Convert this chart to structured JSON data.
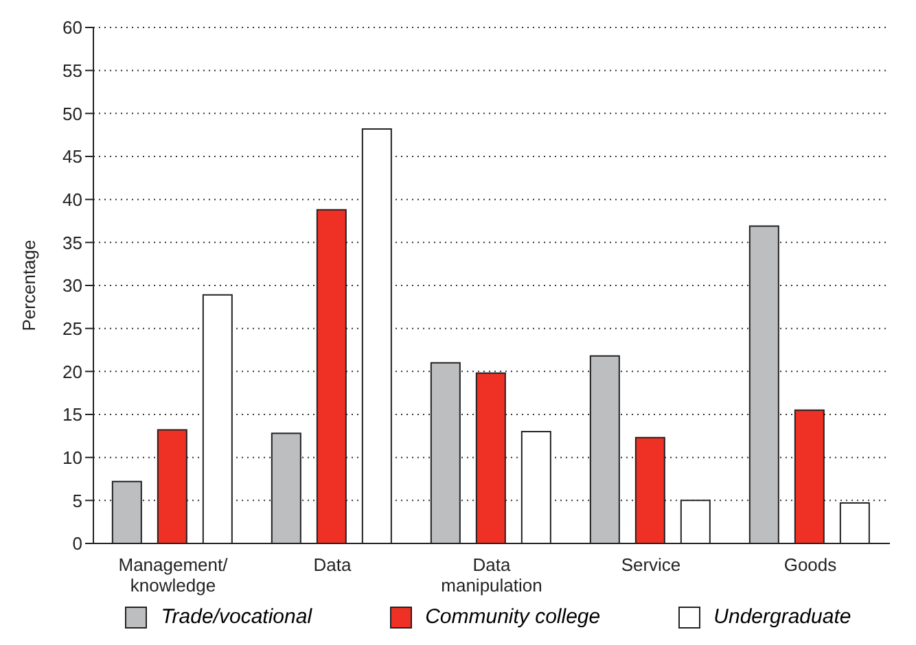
{
  "chart_data": {
    "type": "bar",
    "ylabel": "Percentage",
    "categories": [
      "Management/knowledge",
      "Data",
      "Data manipulation",
      "Service",
      "Goods"
    ],
    "series": [
      {
        "name": "Trade/vocational",
        "color": "#bcbec0",
        "values": [
          7.2,
          12.8,
          21,
          21.8,
          36.9
        ]
      },
      {
        "name": "Community college",
        "color": "#ee3124",
        "values": [
          13.2,
          38.8,
          19.8,
          12.3,
          15.5
        ]
      },
      {
        "name": "Undergraduate",
        "color": "#ffffff",
        "values": [
          28.9,
          48.2,
          13,
          5,
          4.7
        ]
      }
    ],
    "ylim": [
      0,
      60
    ],
    "yticks": [
      0,
      5,
      10,
      15,
      20,
      25,
      30,
      35,
      40,
      45,
      50,
      55,
      60
    ],
    "grid": "y",
    "legend": "bottom"
  }
}
